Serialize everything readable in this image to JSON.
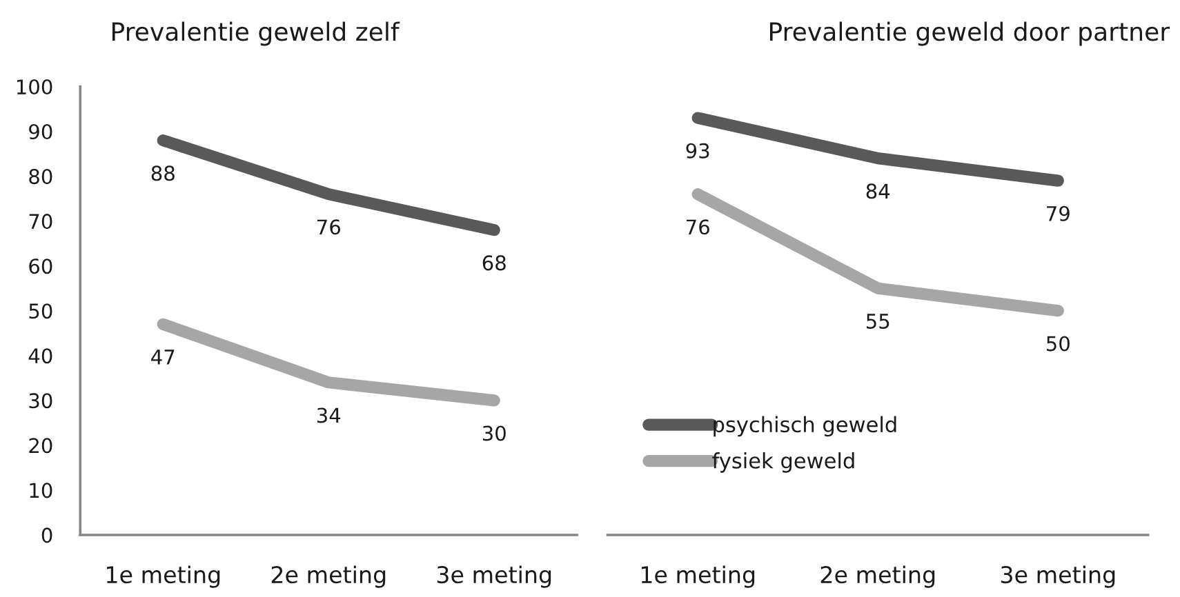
{
  "chart_data": [
    {
      "type": "line",
      "title": "Prevalentie geweld zelf",
      "categories": [
        "1e meting",
        "2e meting",
        "3e meting"
      ],
      "series": [
        {
          "color": "#595959",
          "values": [
            88,
            76,
            68
          ]
        },
        {
          "color": "#a6a6a6",
          "values": [
            47,
            34,
            30
          ]
        }
      ],
      "ylim": [
        0,
        100
      ],
      "yticks": [
        0,
        10,
        20,
        30,
        40,
        50,
        60,
        70,
        80,
        90,
        100
      ],
      "data_labels": true,
      "legend": false
    },
    {
      "type": "line",
      "title": "Prevalentie geweld door partner",
      "categories": [
        "1e meting",
        "2e meting",
        "3e meting"
      ],
      "series": [
        {
          "name": "psychisch geweld",
          "color": "#595959",
          "values": [
            93,
            84,
            79
          ]
        },
        {
          "name": "fysiek geweld",
          "color": "#a6a6a6",
          "values": [
            76,
            55,
            50
          ]
        }
      ],
      "ylim": [
        0,
        100
      ],
      "tick_labels": "x",
      "data_labels": true,
      "legend": "lower left"
    }
  ]
}
